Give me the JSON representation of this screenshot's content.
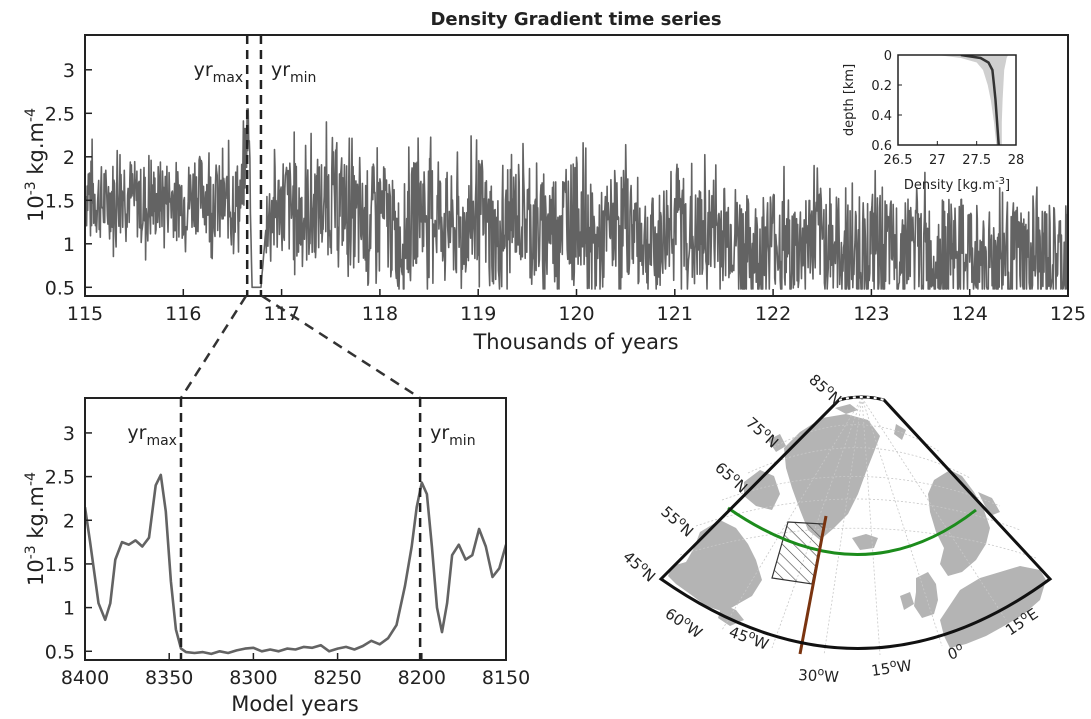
{
  "colors": {
    "series": "#636363",
    "axis": "#222222",
    "land": "#b4b4b4",
    "green": "#1c8c1c",
    "brown": "#7a3410",
    "band": "#cfcfcf"
  },
  "chart_data": [
    {
      "type": "line",
      "title": "Density Gradient time series",
      "xlabel": "Thousands of years",
      "ylabel": "10-3 kg.m-4",
      "ylabel_parts": {
        "base": "10",
        "exp": "-3",
        "mid": " kg.m",
        "exp2": "-4"
      },
      "xlim": [
        115,
        125
      ],
      "ylim": [
        0.4,
        3.4
      ],
      "xticks": [
        115,
        116,
        117,
        118,
        119,
        120,
        121,
        122,
        123,
        124,
        125
      ],
      "yticks": [
        0.5,
        1,
        1.5,
        2,
        2.5,
        3
      ],
      "ytick_labels": [
        "0.5",
        "1",
        "1.5",
        "2",
        "2.5",
        "3"
      ],
      "vlines": [
        {
          "x": 116.65,
          "label": "yrmax",
          "base": "yr",
          "sub": "max"
        },
        {
          "x": 116.79,
          "label": "yrmin",
          "base": "yr",
          "sub": "min"
        }
      ],
      "series": [
        {
          "x": [
            115.0,
            115.2,
            115.4,
            115.6,
            115.8,
            116.0,
            116.2,
            116.4,
            116.6,
            116.66,
            116.7,
            116.79,
            116.85,
            117.0,
            117.2,
            117.4,
            117.6,
            117.8,
            118.0,
            118.2,
            118.4,
            118.6,
            118.8,
            119.0,
            119.2,
            119.4,
            119.6,
            119.8,
            120.0,
            120.2,
            120.4,
            120.6,
            120.8,
            121.0,
            121.2,
            121.4,
            121.6,
            121.8,
            122.0,
            122.2,
            122.4,
            122.6,
            122.8,
            123.0,
            123.2,
            123.4,
            123.6,
            123.8,
            124.0,
            124.2,
            124.4,
            124.6,
            124.8,
            125.0
          ],
          "y": [
            1.6,
            1.45,
            1.65,
            1.4,
            1.55,
            1.5,
            1.6,
            1.45,
            1.55,
            2.5,
            0.5,
            0.5,
            1.3,
            1.5,
            1.3,
            1.45,
            1.5,
            1.2,
            1.4,
            1.0,
            1.45,
            1.35,
            1.1,
            1.4,
            1.0,
            1.4,
            1.1,
            1.3,
            1.4,
            0.9,
            1.3,
            1.2,
            0.9,
            1.4,
            1.0,
            1.2,
            1.1,
            0.9,
            1.1,
            0.9,
            1.1,
            1.0,
            0.85,
            1.0,
            0.9,
            1.0,
            0.85,
            0.95,
            0.9,
            0.85,
            0.9,
            0.8,
            0.85,
            0.75
          ]
        }
      ],
      "inset": {
        "type": "line",
        "xlabel": "Density [kg.m-3]",
        "xlabel_parts": {
          "base": "Density [kg.m",
          "exp": "-3",
          "end": "]"
        },
        "ylabel": "depth [km]",
        "xlim": [
          26.5,
          28.0
        ],
        "ylim": [
          0,
          0.6
        ],
        "xticks": [
          26.5,
          27,
          27.5,
          28
        ],
        "xtick_labels": [
          "26.5",
          "27",
          "27.5",
          "28"
        ],
        "yticks": [
          0,
          0.2,
          0.4,
          0.6
        ],
        "ytick_labels": [
          "0",
          "0.2",
          "0.4",
          "0.6"
        ],
        "mean": {
          "density": [
            27.3,
            27.55,
            27.65,
            27.7,
            27.72,
            27.74,
            27.76,
            27.78
          ],
          "depth": [
            0.0,
            0.02,
            0.05,
            0.1,
            0.2,
            0.3,
            0.45,
            0.6
          ]
        },
        "band_low": [
          27.0,
          27.3,
          27.5,
          27.58,
          27.64,
          27.68,
          27.72,
          27.75
        ],
        "band_high": [
          27.9,
          27.88,
          27.87,
          27.85,
          27.84,
          27.83,
          27.82,
          27.82
        ]
      }
    },
    {
      "type": "line",
      "xlabel": "Model years",
      "ylabel": "10-3 kg.m-4",
      "ylabel_parts": {
        "base": "10",
        "exp": "-3",
        "mid": " kg.m",
        "exp2": "-4"
      },
      "xlim": [
        8400,
        8150
      ],
      "ylim": [
        0.4,
        3.4
      ],
      "xticks": [
        8400,
        8350,
        8300,
        8250,
        8200,
        8150
      ],
      "yticks": [
        0.5,
        1,
        1.5,
        2,
        2.5,
        3
      ],
      "ytick_labels": [
        "0.5",
        "1",
        "1.5",
        "2",
        "2.5",
        "3"
      ],
      "vlines": [
        {
          "x": 8343,
          "label": "yrmax",
          "base": "yr",
          "sub": "max"
        },
        {
          "x": 8201,
          "label": "yrmin",
          "base": "yr",
          "sub": "min"
        }
      ],
      "series": [
        {
          "x": [
            8400,
            8397,
            8392,
            8388,
            8385,
            8382,
            8378,
            8374,
            8370,
            8366,
            8362,
            8358,
            8355,
            8352,
            8349,
            8346,
            8343,
            8340,
            8335,
            8330,
            8325,
            8320,
            8315,
            8310,
            8305,
            8300,
            8295,
            8290,
            8285,
            8280,
            8275,
            8270,
            8265,
            8260,
            8255,
            8250,
            8245,
            8240,
            8235,
            8230,
            8225,
            8220,
            8215,
            8210,
            8206,
            8203,
            8200,
            8197,
            8194,
            8191,
            8188,
            8185,
            8182,
            8178,
            8174,
            8170,
            8166,
            8162,
            8158,
            8154,
            8150
          ],
          "y": [
            2.15,
            1.75,
            1.05,
            0.86,
            1.05,
            1.55,
            1.75,
            1.72,
            1.77,
            1.7,
            1.8,
            2.4,
            2.52,
            2.1,
            1.3,
            0.75,
            0.53,
            0.49,
            0.48,
            0.49,
            0.47,
            0.5,
            0.48,
            0.51,
            0.53,
            0.54,
            0.5,
            0.52,
            0.5,
            0.53,
            0.52,
            0.55,
            0.54,
            0.57,
            0.5,
            0.53,
            0.55,
            0.52,
            0.56,
            0.62,
            0.58,
            0.65,
            0.8,
            1.25,
            1.7,
            2.15,
            2.43,
            2.3,
            1.7,
            1.0,
            0.72,
            1.05,
            1.6,
            1.72,
            1.55,
            1.6,
            1.9,
            1.7,
            1.35,
            1.45,
            1.72
          ]
        }
      ]
    }
  ],
  "map": {
    "lat_labels": [
      {
        "base": "85",
        "sup": "o",
        "end": "N"
      },
      {
        "base": "75",
        "sup": "o",
        "end": "N"
      },
      {
        "base": "65",
        "sup": "o",
        "end": "N"
      },
      {
        "base": "55",
        "sup": "o",
        "end": "N"
      },
      {
        "base": "45",
        "sup": "o",
        "end": "N"
      }
    ],
    "lon_labels": [
      {
        "base": "60",
        "sup": "o",
        "end": "W"
      },
      {
        "base": "45",
        "sup": "o",
        "end": "W"
      },
      {
        "base": "30",
        "sup": "o",
        "end": "W"
      },
      {
        "base": "15",
        "sup": "o",
        "end": "W"
      },
      {
        "base": "0",
        "sup": "o",
        "end": ""
      },
      {
        "base": "15",
        "sup": "o",
        "end": "E"
      }
    ]
  }
}
